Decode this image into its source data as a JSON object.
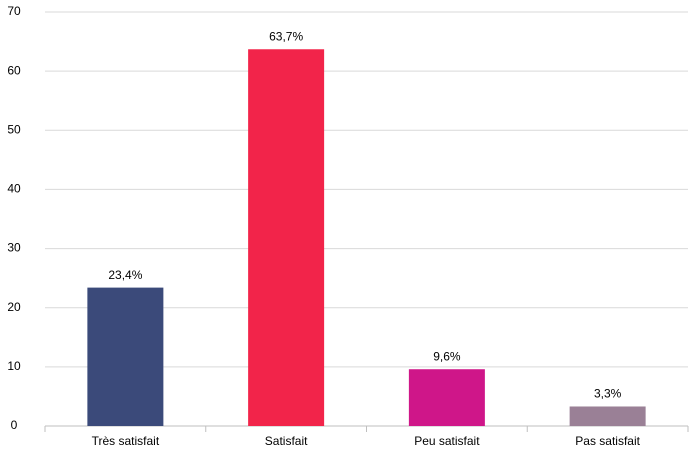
{
  "chart_data": {
    "type": "bar",
    "categories": [
      "Très satisfait",
      "Satisfait",
      "Peu satisfait",
      "Pas satisfait"
    ],
    "values": [
      23.4,
      63.7,
      9.6,
      3.3
    ],
    "value_labels": [
      "23,4%",
      "63,7%",
      "9,6%",
      "3,3%"
    ],
    "colors": [
      "#3b4a7a",
      "#f2244a",
      "#cf1689",
      "#9a8096"
    ],
    "ylim": [
      0,
      70
    ],
    "yticks": [
      0,
      10,
      20,
      30,
      40,
      50,
      60,
      70
    ],
    "grid": true
  }
}
